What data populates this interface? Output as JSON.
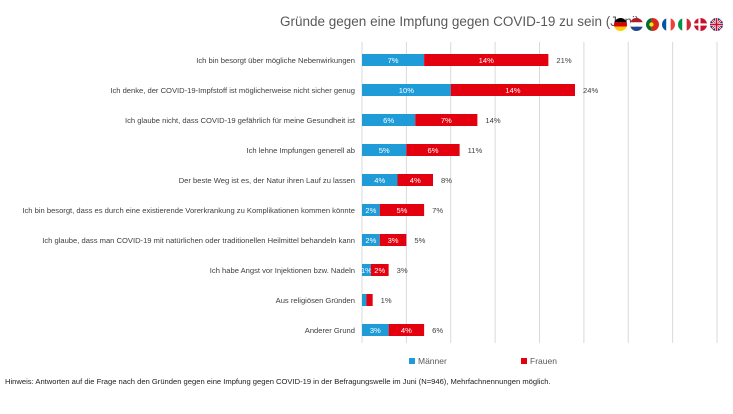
{
  "chart_data": {
    "type": "bar",
    "orientation": "horizontal",
    "stacked": true,
    "title": "Gründe gegen eine Impfung gegen COVID-19 zu sein (Juni)",
    "xlabel": "",
    "ylabel": "",
    "xlim": [
      0,
      40
    ],
    "grid": true,
    "legend_position": "bottom",
    "categories": [
      "Ich bin besorgt über mögliche Nebenwirkungen",
      "Ich denke, der COVID-19-Impfstoff ist möglicherweise nicht sicher genug",
      "Ich glaube nicht, dass COVID-19 gefährlich für meine Gesundheit ist",
      "Ich lehne Impfungen generell ab",
      "Der beste Weg ist es, der Natur ihren Lauf zu lassen",
      "Ich bin besorgt, dass es durch eine existierende Vorerkrankung zu Komplikationen kommen könnte",
      "Ich glaube, dass man COVID-19 mit natürlichen oder traditionellen Heilmittel behandeln kann",
      "Ich habe Angst vor Injektionen bzw. Nadeln",
      "Aus religiösen Gründen",
      "Anderer Grund"
    ],
    "series": [
      {
        "name": "Männer",
        "color": "#1f9bd7",
        "values": [
          7,
          10,
          6,
          5,
          4,
          2,
          2,
          1,
          0.5,
          3
        ],
        "labels": [
          "7%",
          "10%",
          "6%",
          "5%",
          "4%",
          "2%",
          "2%",
          "1%",
          "",
          "3%"
        ]
      },
      {
        "name": "Frauen",
        "color": "#e3000f",
        "values": [
          14,
          14,
          7,
          6,
          4,
          5,
          3,
          2,
          0.7,
          4
        ],
        "labels": [
          "14%",
          "14%",
          "7%",
          "6%",
          "4%",
          "5%",
          "3%",
          "2%",
          "",
          "4%"
        ]
      }
    ],
    "totals": [
      "21%",
      "24%",
      "14%",
      "11%",
      "8%",
      "7%",
      "5%",
      "3%",
      "1%",
      "6%"
    ]
  },
  "flags": [
    {
      "name": "germany-flag-icon",
      "colors": [
        "#000000",
        "#dd0000",
        "#ffce00"
      ]
    },
    {
      "name": "netherlands-flag-icon",
      "colors": [
        "#ae1c28",
        "#ffffff",
        "#21468b"
      ]
    },
    {
      "name": "portugal-flag-icon",
      "colors": [
        "#046a38",
        "#da291c",
        "#ffe900"
      ]
    },
    {
      "name": "france-flag-icon",
      "colors": [
        "#0055a4",
        "#ffffff",
        "#ef4135"
      ]
    },
    {
      "name": "italy-flag-icon",
      "colors": [
        "#009246",
        "#ffffff",
        "#ce2b37"
      ]
    },
    {
      "name": "denmark-flag-icon",
      "colors": [
        "#c8102e",
        "#ffffff"
      ]
    },
    {
      "name": "uk-flag-icon",
      "colors": [
        "#012169",
        "#ffffff",
        "#c8102e"
      ]
    }
  ],
  "note": "Hinweis: Antworten auf die Frage nach den Gründen gegen eine Impfung gegen COVID-19 in der Befragungswelle im Juni (N=946), Mehrfachnennungen möglich."
}
